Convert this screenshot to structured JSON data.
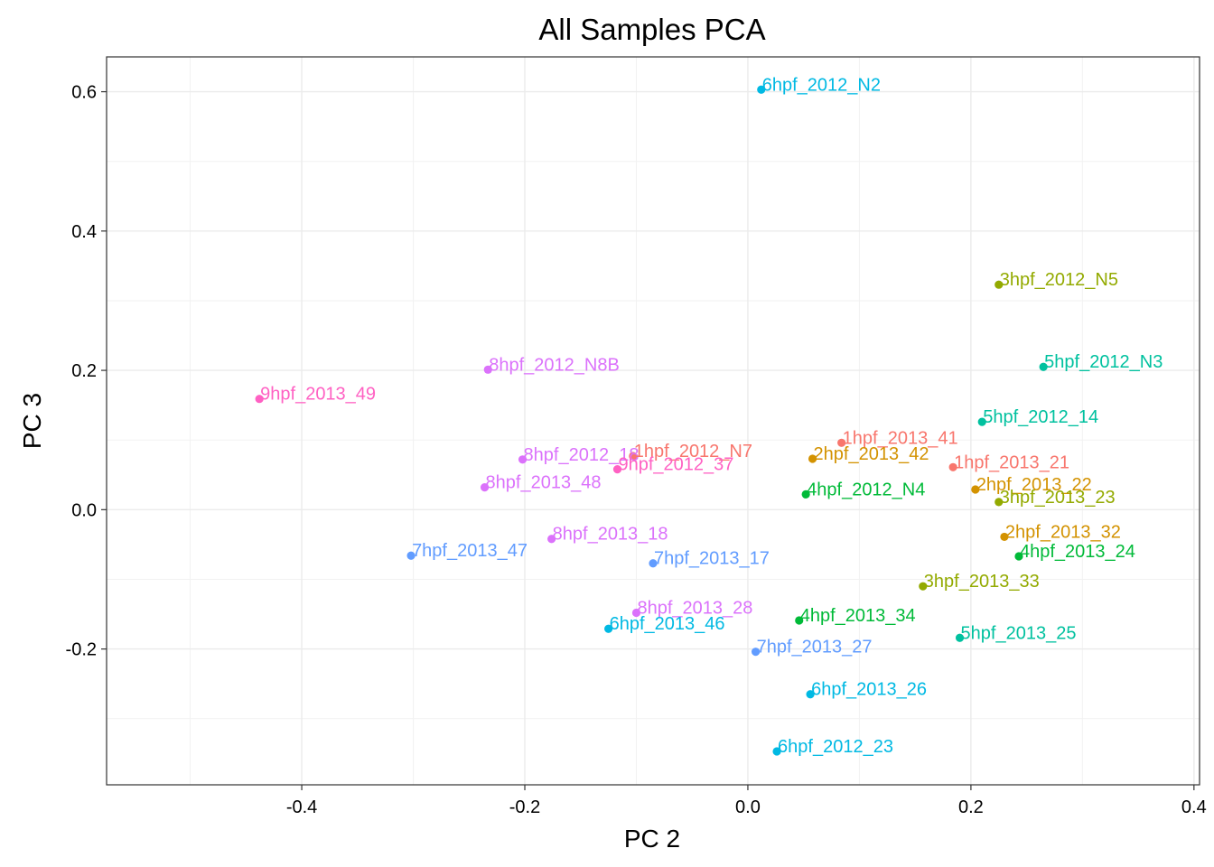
{
  "chart_data": {
    "type": "scatter",
    "title": "All Samples PCA",
    "xlabel": "PC 2",
    "ylabel": "PC 3",
    "xlim": [
      -0.575,
      0.405
    ],
    "ylim": [
      -0.395,
      0.65
    ],
    "xticks": [
      -0.4,
      -0.2,
      0.0,
      0.2,
      0.4
    ],
    "xtick_labels": [
      "-0.4",
      "-0.2",
      "0.0",
      "0.2",
      "0.4"
    ],
    "yticks": [
      -0.2,
      0.0,
      0.2,
      0.4,
      0.6
    ],
    "ytick_labels": [
      "-0.2",
      "0.0",
      "0.2",
      "0.4",
      "0.6"
    ],
    "x_minor": [
      -0.5,
      -0.3,
      -0.1,
      0.1,
      0.3
    ],
    "y_minor": [
      -0.3,
      -0.1,
      0.1,
      0.3,
      0.5
    ],
    "grid": true,
    "legend": "none",
    "colors": {
      "1hpf": "#F8766D",
      "2hpf": "#D39200",
      "3hpf": "#93AA00",
      "4hpf": "#00BA38",
      "5hpf": "#00C19F",
      "6hpf": "#00B9E3",
      "7hpf": "#619CFF",
      "8hpf": "#DB72FB",
      "9hpf": "#FF61C3"
    },
    "points": [
      {
        "label": "6hpf_2012_N2",
        "group": "6hpf",
        "x": 0.012,
        "y": 0.603
      },
      {
        "label": "3hpf_2012_N5",
        "group": "3hpf",
        "x": 0.225,
        "y": 0.323
      },
      {
        "label": "5hpf_2012_N3",
        "group": "5hpf",
        "x": 0.265,
        "y": 0.205
      },
      {
        "label": "8hpf_2012_N8B",
        "group": "8hpf",
        "x": -0.233,
        "y": 0.201
      },
      {
        "label": "9hpf_2013_49",
        "group": "9hpf",
        "x": -0.438,
        "y": 0.159
      },
      {
        "label": "5hpf_2012_14",
        "group": "5hpf",
        "x": 0.21,
        "y": 0.126
      },
      {
        "label": "1hpf_2013_41",
        "group": "1hpf",
        "x": 0.084,
        "y": 0.096
      },
      {
        "label": "2hpf_2013_42",
        "group": "2hpf",
        "x": 0.058,
        "y": 0.073
      },
      {
        "label": "8hpf_2012_18",
        "group": "8hpf",
        "x": -0.202,
        "y": 0.072
      },
      {
        "label": "1hpf_2012_N7",
        "group": "1hpf",
        "x": -0.103,
        "y": 0.077
      },
      {
        "label": "9hpf_2012_37",
        "group": "9hpf",
        "x": -0.117,
        "y": 0.058
      },
      {
        "label": "1hpf_2013_21",
        "group": "1hpf",
        "x": 0.184,
        "y": 0.061
      },
      {
        "label": "8hpf_2013_48",
        "group": "8hpf",
        "x": -0.236,
        "y": 0.032
      },
      {
        "label": "4hpf_2012_N4",
        "group": "4hpf",
        "x": 0.052,
        "y": 0.022
      },
      {
        "label": "2hpf_2013_22",
        "group": "2hpf",
        "x": 0.204,
        "y": 0.029
      },
      {
        "label": "3hpf_2013_23",
        "group": "3hpf",
        "x": 0.225,
        "y": 0.011
      },
      {
        "label": "8hpf_2013_18",
        "group": "8hpf",
        "x": -0.176,
        "y": -0.042
      },
      {
        "label": "7hpf_2013_47",
        "group": "7hpf",
        "x": -0.302,
        "y": -0.066
      },
      {
        "label": "7hpf_2013_17",
        "group": "7hpf",
        "x": -0.085,
        "y": -0.077
      },
      {
        "label": "2hpf_2013_32",
        "group": "2hpf",
        "x": 0.23,
        "y": -0.039
      },
      {
        "label": "4hpf_2013_24",
        "group": "4hpf",
        "x": 0.243,
        "y": -0.067
      },
      {
        "label": "3hpf_2013_33",
        "group": "3hpf",
        "x": 0.157,
        "y": -0.11
      },
      {
        "label": "8hpf_2013_28",
        "group": "8hpf",
        "x": -0.1,
        "y": -0.148
      },
      {
        "label": "4hpf_2013_34",
        "group": "4hpf",
        "x": 0.046,
        "y": -0.159
      },
      {
        "label": "6hpf_2013_46",
        "group": "6hpf",
        "x": -0.125,
        "y": -0.171
      },
      {
        "label": "5hpf_2013_25",
        "group": "5hpf",
        "x": 0.19,
        "y": -0.184
      },
      {
        "label": "7hpf_2013_27",
        "group": "7hpf",
        "x": 0.007,
        "y": -0.204
      },
      {
        "label": "6hpf_2013_26",
        "group": "6hpf",
        "x": 0.056,
        "y": -0.265
      },
      {
        "label": "6hpf_2012_23",
        "group": "6hpf",
        "x": 0.026,
        "y": -0.347
      }
    ]
  }
}
